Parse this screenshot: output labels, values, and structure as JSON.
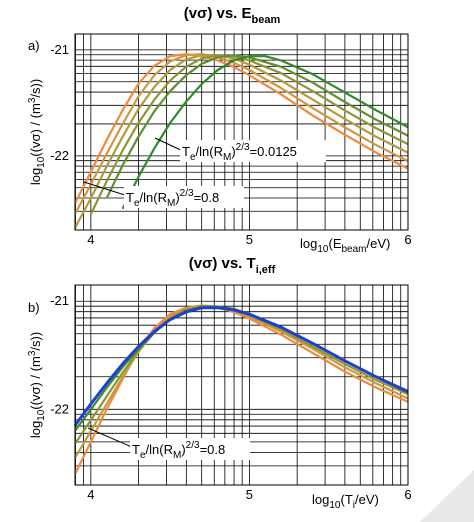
{
  "chart_data": [
    {
      "type": "line",
      "panel_label": "a)",
      "title": {
        "main": "(vσ) vs. E",
        "sub": "beam"
      },
      "xlabel": {
        "pre": "log",
        "sub": "10",
        "mid": "(E",
        "sub2": "beam",
        "post": "/eV)"
      },
      "ylabel": {
        "pre": "log",
        "sub": "10",
        "mid": "((vσ) / (m",
        "sup": "3",
        "post": "/s))"
      },
      "xlim": [
        3.9,
        6.0
      ],
      "ylim": [
        -22.7,
        -20.85
      ],
      "x_ticks": [
        4,
        5,
        6
      ],
      "x_tick_labels": [
        "4",
        "5",
        "6"
      ],
      "y_ticks": [
        -21,
        -22
      ],
      "y_tick_labels": [
        "-21",
        "-22"
      ],
      "log_grid": true,
      "annotations": [
        {
          "pre": "T",
          "sub": "e",
          "mid": "/ln(R",
          "sub2": "M",
          "sup": ")",
          "sup2": "2/3",
          "post": "=0.0125",
          "x": 4.42,
          "y": -21.6
        },
        {
          "pre": "T",
          "sub": "e",
          "mid": "/ln(R",
          "sub2": "M",
          "sup": ")",
          "sup2": "2/3",
          "post": "=0.8",
          "x": 4.0,
          "y": -22.23
        }
      ],
      "series": [
        {
          "color": "#f08a3c",
          "peak_x": 4.55,
          "peak_y": -21.04,
          "x": [
            3.9,
            4.0,
            4.1,
            4.2,
            4.3,
            4.4,
            4.5,
            4.6,
            4.7,
            4.8,
            4.9,
            5.0,
            5.2,
            5.4,
            5.6,
            5.8,
            6.0
          ],
          "y": [
            -22.45,
            -22.15,
            -21.85,
            -21.57,
            -21.32,
            -21.15,
            -21.06,
            -21.04,
            -21.06,
            -21.1,
            -21.16,
            -21.24,
            -21.42,
            -21.62,
            -21.8,
            -21.97,
            -22.12
          ]
        },
        {
          "color": "#d29640",
          "peak_x": 4.62,
          "peak_y": -21.04,
          "x": [
            3.9,
            4.0,
            4.1,
            4.2,
            4.3,
            4.4,
            4.5,
            4.6,
            4.7,
            4.8,
            4.9,
            5.0,
            5.2,
            5.4,
            5.6,
            5.8,
            6.0
          ],
          "y": [
            -22.55,
            -22.27,
            -21.98,
            -21.7,
            -21.44,
            -21.24,
            -21.11,
            -21.05,
            -21.04,
            -21.07,
            -21.12,
            -21.19,
            -21.36,
            -21.55,
            -21.73,
            -21.9,
            -22.05
          ]
        },
        {
          "color": "#b39a3a",
          "peak_x": 4.7,
          "peak_y": -21.04,
          "x": [
            3.9,
            4.0,
            4.1,
            4.2,
            4.3,
            4.4,
            4.5,
            4.6,
            4.7,
            4.8,
            4.9,
            5.0,
            5.2,
            5.4,
            5.6,
            5.8,
            6.0
          ],
          "y": [
            -22.68,
            -22.4,
            -22.1,
            -21.82,
            -21.56,
            -21.35,
            -21.19,
            -21.09,
            -21.05,
            -21.05,
            -21.08,
            -21.14,
            -21.29,
            -21.47,
            -21.65,
            -21.82,
            -21.97
          ]
        },
        {
          "color": "#8f9535",
          "peak_x": 4.8,
          "peak_y": -21.04,
          "x": [
            4.0,
            4.1,
            4.2,
            4.3,
            4.4,
            4.5,
            4.6,
            4.7,
            4.8,
            4.9,
            5.0,
            5.2,
            5.4,
            5.6,
            5.8,
            6.0
          ],
          "y": [
            -22.55,
            -22.24,
            -21.95,
            -21.69,
            -21.47,
            -21.29,
            -21.16,
            -21.08,
            -21.05,
            -21.06,
            -21.1,
            -21.22,
            -21.39,
            -21.57,
            -21.74,
            -21.89
          ]
        },
        {
          "color": "#5f8f2e",
          "peak_x": 4.9,
          "peak_y": -21.05,
          "x": [
            4.1,
            4.2,
            4.3,
            4.4,
            4.5,
            4.6,
            4.7,
            4.8,
            4.9,
            5.0,
            5.2,
            5.4,
            5.6,
            5.8,
            6.0
          ],
          "y": [
            -22.4,
            -22.09,
            -21.82,
            -21.58,
            -21.39,
            -21.24,
            -21.13,
            -21.07,
            -21.05,
            -21.07,
            -21.16,
            -21.31,
            -21.49,
            -21.66,
            -21.81
          ]
        },
        {
          "color": "#2e8a2a",
          "peak_x": 5.0,
          "peak_y": -21.06,
          "x": [
            4.2,
            4.3,
            4.4,
            4.5,
            4.6,
            4.7,
            4.8,
            4.9,
            5.0,
            5.1,
            5.2,
            5.4,
            5.6,
            5.8,
            6.0
          ],
          "y": [
            -22.5,
            -22.2,
            -21.93,
            -21.69,
            -21.49,
            -21.32,
            -21.19,
            -21.1,
            -21.06,
            -21.06,
            -21.1,
            -21.23,
            -21.4,
            -21.57,
            -21.73
          ]
        }
      ]
    },
    {
      "type": "line",
      "panel_label": "b)",
      "title": {
        "main": "(vσ) vs. T",
        "sub": "i,eff"
      },
      "xlabel": {
        "pre": "log",
        "sub": "10",
        "mid": "(T",
        "sub2": "i",
        "post": "/eV)"
      },
      "ylabel": {
        "pre": "log",
        "sub": "10",
        "mid": "((vσ) / (m",
        "sup": "3",
        "post": "/s))"
      },
      "xlim": [
        3.9,
        6.0
      ],
      "ylim": [
        -22.7,
        -20.85
      ],
      "x_ticks": [
        4,
        5,
        6
      ],
      "x_tick_labels": [
        "4",
        "5",
        "6"
      ],
      "y_ticks": [
        -21,
        -22
      ],
      "y_tick_labels": [
        "-21",
        "-22"
      ],
      "log_grid": true,
      "annotations": [
        {
          "pre": "T",
          "sub": "e",
          "mid": "/ln(R",
          "sub2": "M",
          "sup": ")",
          "sup2": "2/3",
          "post": "=0.8",
          "x": 4.0,
          "y": -22.25
        }
      ],
      "series": [
        {
          "color": "#f08a3c",
          "x": [
            3.9,
            4.0,
            4.1,
            4.2,
            4.3,
            4.4,
            4.5,
            4.6,
            4.7,
            4.8,
            4.9,
            5.0,
            5.2,
            5.4,
            5.6,
            5.8,
            6.0
          ],
          "y": [
            -22.6,
            -22.3,
            -22.0,
            -21.72,
            -21.45,
            -21.25,
            -21.12,
            -21.06,
            -21.04,
            -21.06,
            -21.1,
            -21.16,
            -21.31,
            -21.48,
            -21.65,
            -21.8,
            -21.93
          ]
        },
        {
          "color": "#c89a3e",
          "x": [
            3.9,
            4.0,
            4.1,
            4.2,
            4.3,
            4.4,
            4.5,
            4.6,
            4.7,
            4.8,
            4.9,
            5.0,
            5.2,
            5.4,
            5.6,
            5.8,
            6.0
          ],
          "y": [
            -22.45,
            -22.2,
            -21.95,
            -21.7,
            -21.47,
            -21.28,
            -21.14,
            -21.07,
            -21.04,
            -21.05,
            -21.08,
            -21.14,
            -21.28,
            -21.44,
            -21.61,
            -21.76,
            -21.9
          ]
        },
        {
          "color": "#8f9535",
          "x": [
            3.9,
            4.0,
            4.1,
            4.2,
            4.3,
            4.4,
            4.5,
            4.6,
            4.7,
            4.8,
            4.9,
            5.0,
            5.2,
            5.4,
            5.6,
            5.8,
            6.0
          ],
          "y": [
            -22.32,
            -22.1,
            -21.88,
            -21.66,
            -21.46,
            -21.29,
            -21.16,
            -21.08,
            -21.05,
            -21.05,
            -21.08,
            -21.13,
            -21.26,
            -21.42,
            -21.58,
            -21.73,
            -21.86
          ]
        },
        {
          "color": "#3a8c2c",
          "x": [
            3.9,
            4.0,
            4.1,
            4.2,
            4.3,
            4.4,
            4.5,
            4.6,
            4.7,
            4.8,
            4.9,
            5.0,
            5.2,
            5.4,
            5.6,
            5.8,
            6.0
          ],
          "y": [
            -22.2,
            -22.0,
            -21.8,
            -21.61,
            -21.44,
            -21.29,
            -21.17,
            -21.09,
            -21.05,
            -21.05,
            -21.07,
            -21.12,
            -21.24,
            -21.39,
            -21.55,
            -21.7,
            -21.83
          ]
        },
        {
          "color": "#1f3fd0",
          "x": [
            3.9,
            4.0,
            4.1,
            4.2,
            4.3,
            4.4,
            4.5,
            4.6,
            4.7,
            4.8,
            4.9,
            5.0,
            5.2,
            5.4,
            5.6,
            5.8,
            6.0
          ],
          "y": [
            -22.15,
            -21.95,
            -21.76,
            -21.58,
            -21.42,
            -21.28,
            -21.17,
            -21.1,
            -21.06,
            -21.06,
            -21.08,
            -21.12,
            -21.24,
            -21.39,
            -21.55,
            -21.7,
            -21.84
          ]
        }
      ]
    }
  ]
}
